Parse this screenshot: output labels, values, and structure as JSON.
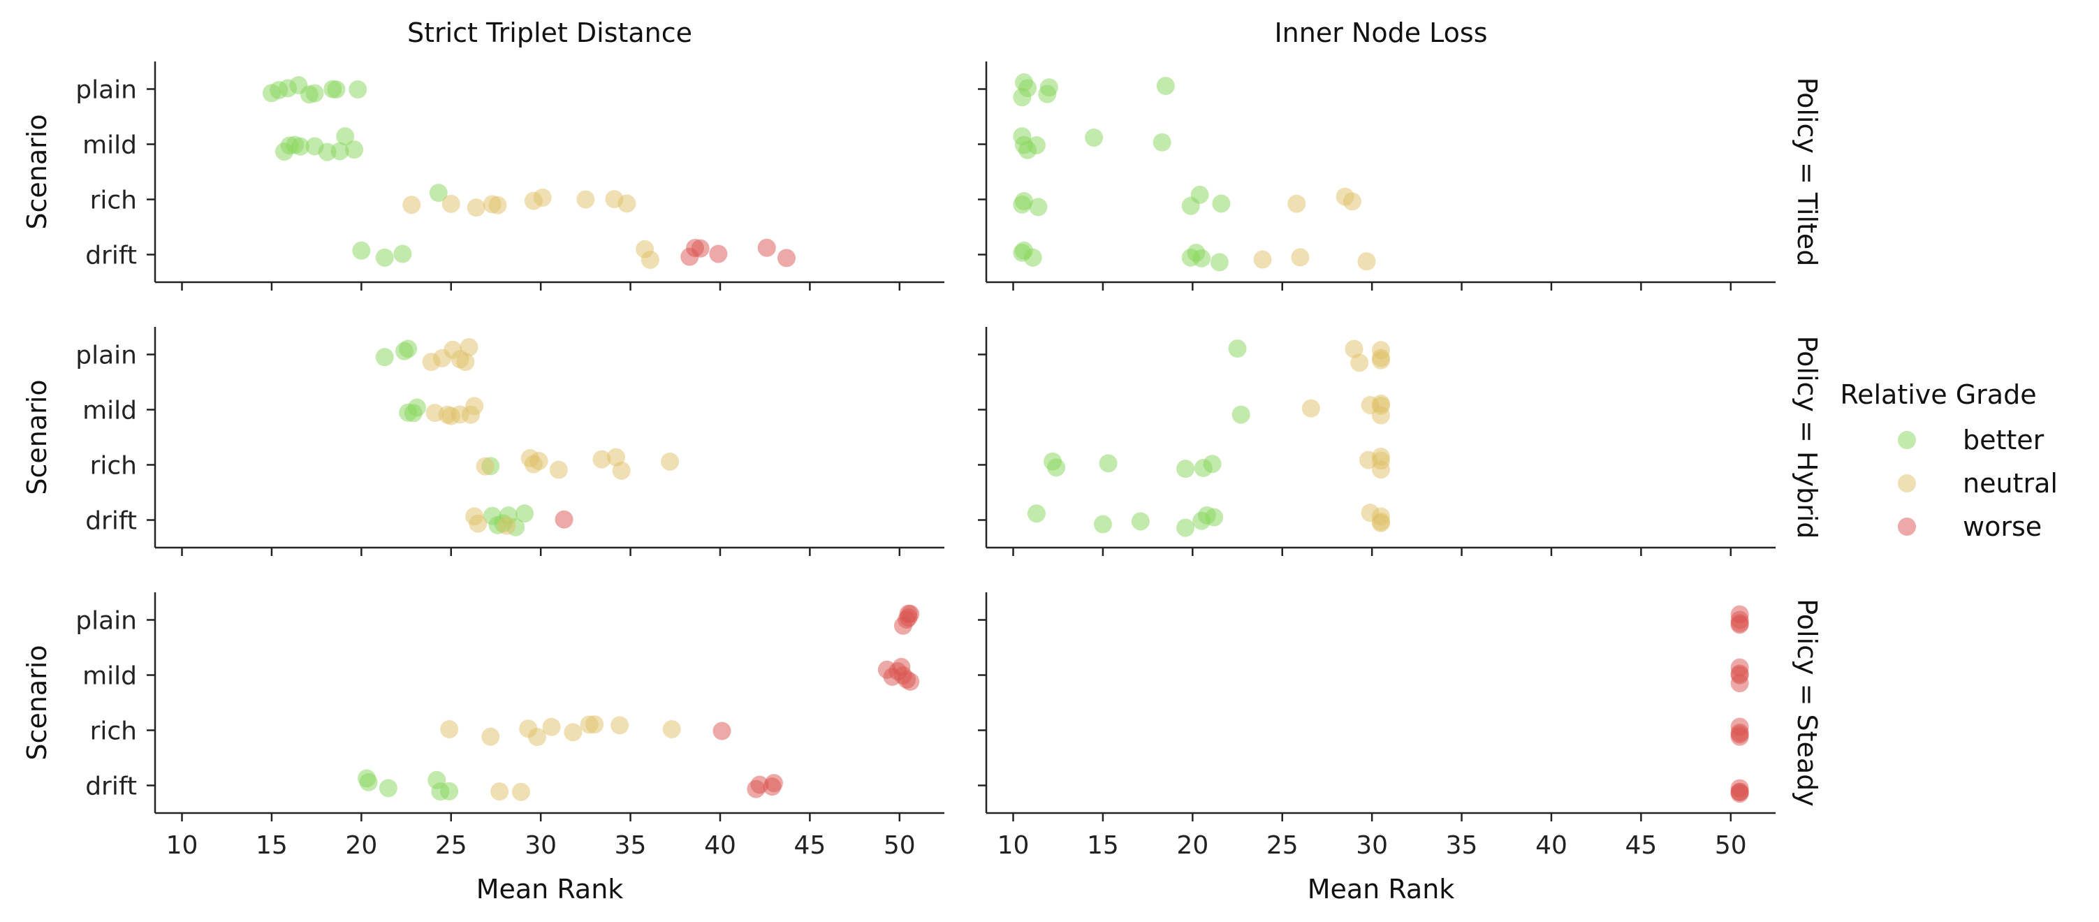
{
  "chart_data": {
    "type": "scatter",
    "columns": [
      "Strict Triplet Distance",
      "Inner Node Loss"
    ],
    "row_labels": [
      "Policy = Tilted",
      "Policy = Hybrid",
      "Policy = Steady"
    ],
    "categories": [
      "plain",
      "mild",
      "rich",
      "drift"
    ],
    "xlabel": "Mean Rank",
    "ylabel": "Scenario",
    "xlim": [
      8.5,
      52.5
    ],
    "xticks": [
      10,
      15,
      20,
      25,
      30,
      35,
      40,
      45,
      50
    ],
    "grid": false,
    "legend": {
      "title": "Relative Grade",
      "placement": "right",
      "entries": [
        {
          "name": "better",
          "color": "#85d65a"
        },
        {
          "name": "neutral",
          "color": "#dfc066"
        },
        {
          "name": "worse",
          "color": "#d9534f"
        }
      ]
    },
    "panels": [
      {
        "row": 0,
        "col": 0,
        "points": {
          "plain": {
            "better": [
              15.0,
              15.4,
              15.9,
              16.5,
              17.1,
              17.4,
              18.4,
              18.6,
              19.8
            ]
          },
          "mild": {
            "better": [
              15.7,
              16.0,
              16.3,
              16.6,
              17.4,
              18.1,
              18.8,
              19.1,
              19.6
            ]
          },
          "rich": {
            "better": [
              24.3
            ],
            "neutral": [
              22.8,
              25.0,
              26.4,
              27.3,
              27.6,
              29.6,
              30.1,
              32.5,
              34.1,
              34.8
            ]
          },
          "drift": {
            "better": [
              20.0,
              21.3,
              22.3
            ],
            "neutral": [
              35.8,
              36.1
            ],
            "worse": [
              38.3,
              38.6,
              38.9,
              39.9,
              42.6,
              43.7
            ]
          }
        }
      },
      {
        "row": 0,
        "col": 1,
        "points": {
          "plain": {
            "better": [
              10.5,
              10.6,
              10.8,
              11.9,
              12.0,
              18.5
            ]
          },
          "mild": {
            "better": [
              10.5,
              10.6,
              10.8,
              11.3,
              14.5,
              18.3
            ]
          },
          "rich": {
            "better": [
              10.5,
              10.6,
              11.4,
              19.9,
              20.4,
              21.6
            ],
            "neutral": [
              25.8,
              28.5,
              28.9
            ]
          },
          "drift": {
            "better": [
              10.5,
              10.6,
              11.1,
              19.9,
              20.2,
              20.5,
              21.5
            ],
            "neutral": [
              23.9,
              26.0,
              29.7
            ]
          }
        }
      },
      {
        "row": 1,
        "col": 0,
        "points": {
          "plain": {
            "better": [
              21.3,
              22.4,
              22.6
            ],
            "neutral": [
              23.9,
              24.5,
              25.1,
              25.5,
              25.8,
              26.0
            ]
          },
          "mild": {
            "better": [
              22.6,
              22.9,
              23.1
            ],
            "neutral": [
              24.1,
              24.8,
              25.0,
              25.5,
              26.1,
              26.3
            ]
          },
          "rich": {
            "better": [
              27.2
            ],
            "neutral": [
              26.9,
              29.4,
              29.6,
              29.9,
              31.0,
              33.4,
              34.2,
              34.5,
              37.2
            ]
          },
          "drift": {
            "better": [
              27.3,
              27.6,
              27.9,
              28.2,
              28.6,
              29.1
            ],
            "neutral": [
              26.3,
              26.5,
              28.1
            ],
            "worse": [
              31.3
            ]
          }
        }
      },
      {
        "row": 1,
        "col": 1,
        "points": {
          "plain": {
            "better": [
              22.5
            ],
            "neutral": [
              29.0,
              29.3,
              30.5,
              30.5,
              30.5
            ]
          },
          "mild": {
            "better": [
              22.7
            ],
            "neutral": [
              26.6,
              29.9,
              30.5,
              30.5,
              30.5
            ]
          },
          "rich": {
            "better": [
              12.2,
              12.4,
              15.3,
              19.6,
              20.6,
              21.1
            ],
            "neutral": [
              29.8,
              30.5,
              30.5,
              30.5
            ]
          },
          "drift": {
            "better": [
              11.3,
              15.0,
              17.1,
              19.6,
              20.5,
              20.8,
              21.2
            ],
            "neutral": [
              29.9,
              30.5,
              30.5,
              30.5
            ]
          }
        }
      },
      {
        "row": 2,
        "col": 0,
        "points": {
          "plain": {
            "worse": [
              50.2,
              50.4,
              50.5,
              50.5,
              50.6
            ]
          },
          "mild": {
            "worse": [
              49.3,
              49.6,
              49.9,
              50.1,
              50.2,
              50.4,
              50.6
            ]
          },
          "rich": {
            "neutral": [
              24.9,
              27.2,
              29.3,
              29.8,
              30.6,
              31.8,
              32.7,
              33.0,
              34.4,
              37.3
            ],
            "worse": [
              40.1
            ]
          },
          "drift": {
            "better": [
              20.3,
              20.4,
              21.5,
              24.2,
              24.4,
              24.9
            ],
            "neutral": [
              27.7,
              28.9
            ],
            "worse": [
              42.0,
              42.2,
              42.9,
              43.0
            ]
          }
        }
      },
      {
        "row": 2,
        "col": 1,
        "points": {
          "plain": {
            "worse": [
              50.5,
              50.5,
              50.5,
              50.5
            ]
          },
          "mild": {
            "worse": [
              50.5,
              50.5,
              50.5,
              50.5
            ]
          },
          "rich": {
            "worse": [
              50.5,
              50.5,
              50.5,
              50.5
            ]
          },
          "drift": {
            "worse": [
              50.5,
              50.5,
              50.5,
              50.5
            ]
          }
        }
      }
    ]
  }
}
